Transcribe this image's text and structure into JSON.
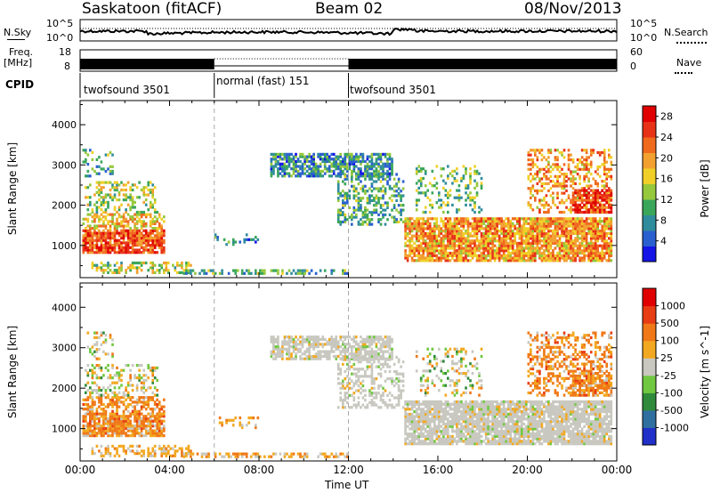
{
  "header": {
    "station": "Saskatoon (fitACF)",
    "beam": "Beam 02",
    "date": "08/Nov/2013"
  },
  "side_labels": {
    "nsky": "N.Sky",
    "freq": "Freq.",
    "mhz": "[MHz]",
    "cpid": "CPID",
    "nsearch": "N.Search",
    "nave": "Nave"
  },
  "noise_axis": {
    "left_top": "10^5",
    "left_bottom": "10^0",
    "right_top": "10^5",
    "right_bottom": "10^0"
  },
  "freq_axis": {
    "left_ticks": [
      "18",
      "8"
    ],
    "right_ticks": [
      "60",
      "0"
    ]
  },
  "cpid_segments": [
    {
      "label": "twofsound 3501",
      "start_h": 0,
      "end_h": 6
    },
    {
      "label": "normal (fast) 151",
      "start_h": 6,
      "end_h": 12
    },
    {
      "label": "twofsound 3501",
      "start_h": 12,
      "end_h": 24
    }
  ],
  "time_axis": {
    "label": "Time UT",
    "ticks": [
      "00:00",
      "04:00",
      "08:00",
      "12:00",
      "16:00",
      "20:00",
      "00:00"
    ],
    "range_h": [
      0,
      24
    ]
  },
  "chart_data": [
    {
      "type": "heatmap",
      "ylabel": "Slant Range [km]",
      "yticks": [
        "1000",
        "2000",
        "3000",
        "4000"
      ],
      "ylim": [
        200,
        4600
      ],
      "colorbar": {
        "label": "Power [dB]",
        "ticks": [
          "4",
          "8",
          "12",
          "16",
          "20",
          "24",
          "28"
        ],
        "range": [
          0,
          30
        ],
        "colors": [
          "#1414e6",
          "#2a5fd0",
          "#2f8c9c",
          "#3aa65a",
          "#96c83c",
          "#f0d028",
          "#f2a030",
          "#f06a1e",
          "#e83218",
          "#e00000"
        ]
      }
    },
    {
      "type": "heatmap",
      "ylabel": "Slant Range [km]",
      "yticks": [
        "1000",
        "2000",
        "3000",
        "4000"
      ],
      "ylim": [
        200,
        4600
      ],
      "colorbar": {
        "label": "Velocity [m s^-1]",
        "ticks": [
          "1000",
          "500",
          "100",
          "25",
          "-25",
          "-100",
          "-500",
          "-1000"
        ],
        "colors": [
          "#2030c8",
          "#2f6fa0",
          "#2f8a3c",
          "#70c840",
          "#c8c8c0",
          "#f2a820",
          "#f07818",
          "#e83c14",
          "#e00000"
        ]
      }
    }
  ]
}
